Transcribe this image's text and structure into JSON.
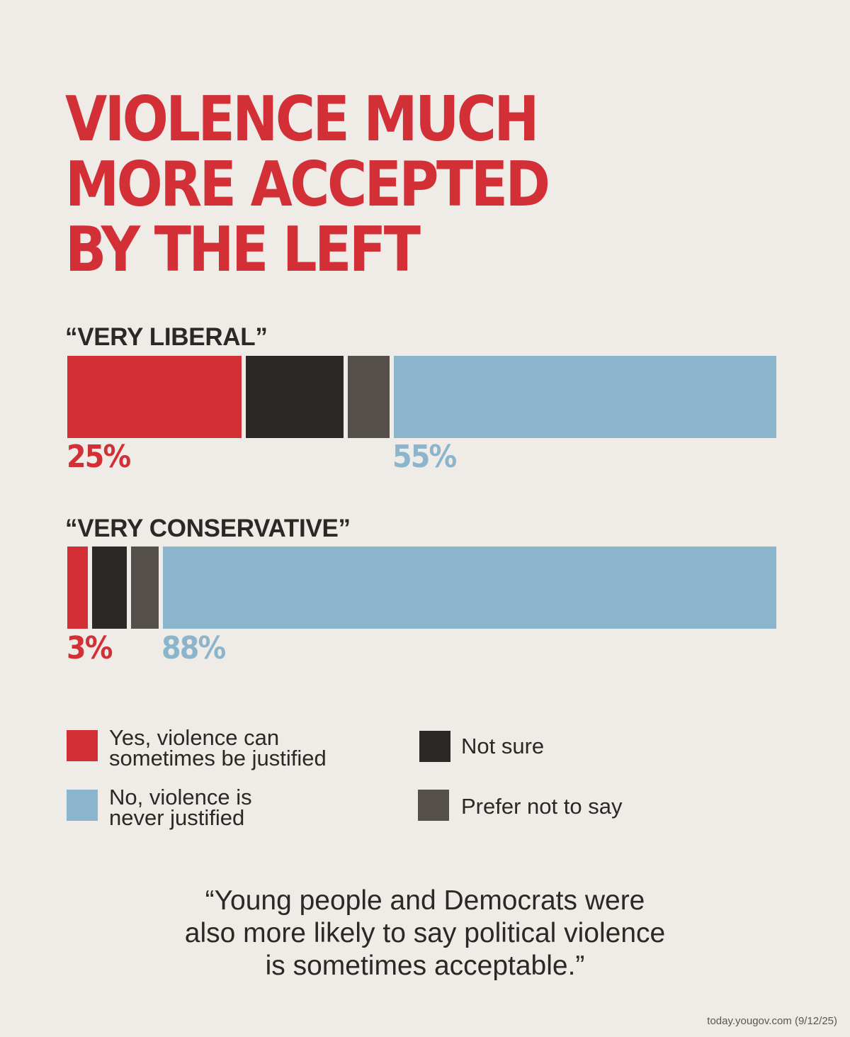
{
  "chart_data": {
    "type": "bar",
    "stacked": true,
    "orientation": "horizontal",
    "title_lines": [
      "VIOLENCE MUCH",
      "MORE ACCEPTED",
      "BY THE LEFT"
    ],
    "categories": [
      "“VERY LIBERAL”",
      "“VERY CONSERVATIVE”"
    ],
    "series": [
      {
        "name": "Yes, violence can sometimes be justified",
        "color": "#d22f36",
        "values": [
          25,
          3
        ]
      },
      {
        "name": "Not sure",
        "color": "#2b2825",
        "values": [
          14,
          5
        ]
      },
      {
        "name": "Prefer not to say",
        "color": "#55504b",
        "values": [
          6,
          4
        ]
      },
      {
        "name": "No, violence is never justified",
        "color": "#8ab5cc",
        "values": [
          55,
          88
        ]
      }
    ],
    "data_labels": [
      {
        "yes": "25%",
        "no": "55%"
      },
      {
        "yes": "3%",
        "no": "88%"
      }
    ],
    "xlim": [
      0,
      100
    ]
  },
  "legend": [
    {
      "lines": [
        "Yes, violence can",
        "sometimes be justified"
      ],
      "color": "#d22f36",
      "icon": "red-swatch"
    },
    {
      "lines": [
        "Not sure"
      ],
      "color": "#2b2825",
      "icon": "black-swatch"
    },
    {
      "lines": [
        "No, violence is",
        "never justified"
      ],
      "color": "#8ab5cc",
      "icon": "blue-swatch"
    },
    {
      "lines": [
        "Prefer not to say"
      ],
      "color": "#55504b",
      "icon": "gray-swatch"
    }
  ],
  "quote": {
    "lines": [
      "“Young people and Democrats were",
      "also more likely to say political violence",
      "is sometimes acceptable.”"
    ]
  },
  "source": "today.yougov.com (9/12/25)"
}
